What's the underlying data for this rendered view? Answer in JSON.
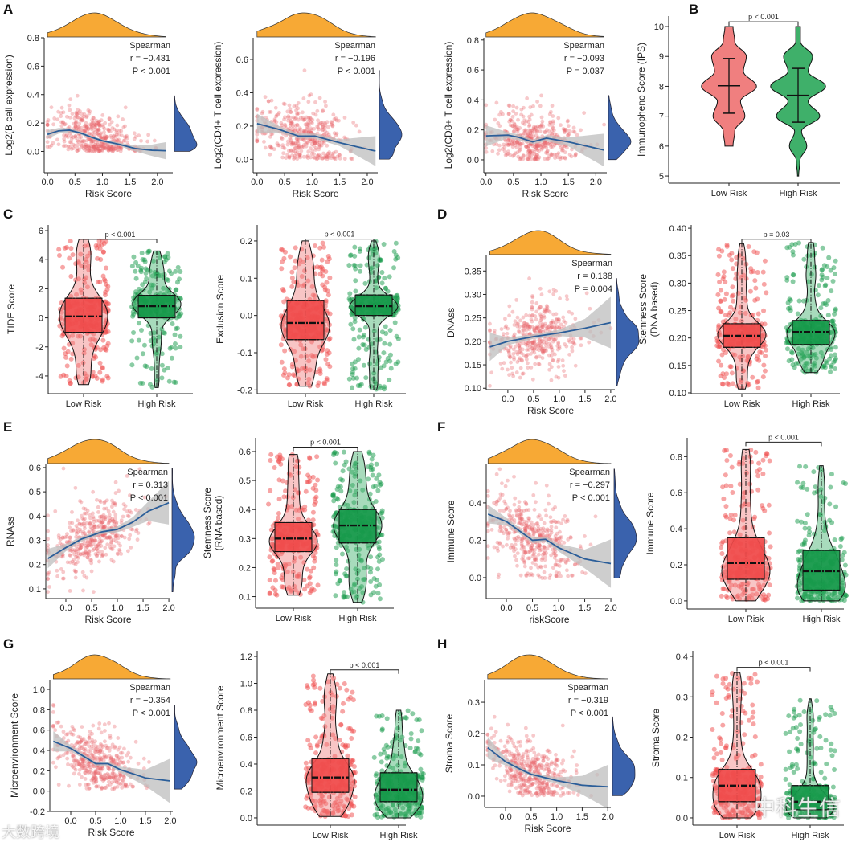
{
  "panel_letters": {
    "A": "A",
    "B": "B",
    "C": "C",
    "D": "D",
    "E": "E",
    "F": "F",
    "G": "G",
    "H": "H"
  },
  "watermarks": {
    "left": "大数跨境",
    "right": "中科生信"
  },
  "colors": {
    "point": "#e8636b",
    "trend": "#2b5e99",
    "ci": "#bdbdbd",
    "top_density": "#f7a935",
    "right_density": "#3a62ad",
    "low": "#f04b4b",
    "high": "#16994a",
    "low_violin": "#f07f7f",
    "high_violin": "#3fb06a"
  },
  "chart_data": [
    {
      "id": "A1",
      "type": "scatter",
      "xlabel": "Risk Score",
      "ylabel": "Log2(B cell expression)",
      "xticks": [
        "0.0",
        "0.5",
        "1.0",
        "1.5",
        "2.0"
      ],
      "yticks": [
        "0.0",
        "0.2",
        "0.4",
        "0.6",
        "0.8"
      ],
      "xlim": [
        -0.06,
        2.28
      ],
      "ylim": [
        -0.15,
        0.8
      ],
      "stat": [
        "Spearman",
        "r = −0.431",
        "P < 0.001"
      ],
      "trend": [
        [
          0,
          0.12
        ],
        [
          0.2,
          0.145
        ],
        [
          0.4,
          0.15
        ],
        [
          0.6,
          0.13
        ],
        [
          0.8,
          0.1
        ],
        [
          1.0,
          0.075
        ],
        [
          1.3,
          0.05
        ],
        [
          1.6,
          0.02
        ],
        [
          1.9,
          0.008
        ],
        [
          2.15,
          0.005
        ]
      ],
      "ci": [
        0.03,
        0.02,
        0.015,
        0.012,
        0.01,
        0.01,
        0.012,
        0.02,
        0.04,
        0.06
      ],
      "n": 420,
      "x_mean": 0.85,
      "x_sd": 0.42,
      "x_range": [
        0,
        2.15
      ],
      "noise_sd": 0.1,
      "y_floor": 0
    },
    {
      "id": "A2",
      "type": "scatter",
      "xlabel": "Risk Score",
      "ylabel": "Log2(CD4+ T cell expression)",
      "xticks": [
        "0.0",
        "0.5",
        "1.0",
        "1.5",
        "2.0"
      ],
      "yticks": [
        "0.0",
        "0.2",
        "0.4",
        "0.6"
      ],
      "xlim": [
        -0.07,
        2.19
      ],
      "ylim": [
        -0.08,
        0.73
      ],
      "stat": [
        "Spearman",
        "r = −0.196",
        "P < 0.001"
      ],
      "trend": [
        [
          0,
          0.215
        ],
        [
          0.4,
          0.18
        ],
        [
          0.75,
          0.14
        ],
        [
          1.05,
          0.14
        ],
        [
          1.5,
          0.1
        ],
        [
          2.15,
          0.05
        ]
      ],
      "ci": [
        0.06,
        0.02,
        0.015,
        0.015,
        0.02,
        0.09
      ],
      "n": 420,
      "x_mean": 0.85,
      "x_sd": 0.42,
      "x_range": [
        0,
        2.15
      ],
      "noise_sd": 0.11,
      "y_floor": 0
    },
    {
      "id": "A3",
      "type": "scatter",
      "xlabel": "Risk Score",
      "ylabel": "Log2(CD8+ T cell expression)",
      "xticks": [
        "0.0",
        "0.5",
        "1.0",
        "1.5",
        "2.0"
      ],
      "yticks": [
        "0.0",
        "0.2",
        "0.4",
        "0.6",
        "0.8"
      ],
      "xlim": [
        -0.04,
        2.2
      ],
      "ylim": [
        -0.086,
        0.815
      ],
      "stat": [
        "Spearman",
        "r = −0.093",
        "P = 0.037"
      ],
      "trend": [
        [
          0,
          0.16
        ],
        [
          0.4,
          0.165
        ],
        [
          0.6,
          0.15
        ],
        [
          0.85,
          0.12
        ],
        [
          1.1,
          0.145
        ],
        [
          1.5,
          0.12
        ],
        [
          2.15,
          0.065
        ]
      ],
      "ci": [
        0.07,
        0.02,
        0.02,
        0.015,
        0.02,
        0.03,
        0.11
      ],
      "n": 420,
      "x_mean": 0.85,
      "x_sd": 0.42,
      "x_range": [
        0,
        2.15
      ],
      "noise_sd": 0.11,
      "y_floor": 0
    },
    {
      "id": "B",
      "type": "violin",
      "ylabel": "Immunopheno Score (IPS)",
      "yticks": [
        "5",
        "6",
        "7",
        "8",
        "9",
        "10"
      ],
      "ylim": [
        4.76,
        10.35
      ],
      "categories": [
        "Low Risk",
        "High Risk"
      ],
      "p": "p < 0.001",
      "bracket_y": 10.16,
      "groups": [
        {
          "min": 6,
          "max": 10,
          "mean": 8.02,
          "lower": 7.1,
          "upper": 8.93,
          "profile": [
            0.14,
            0.2,
            0.55,
            0.4,
            0.95,
            0.5,
            0.6,
            0.2,
            0.14
          ]
        },
        {
          "min": 5,
          "max": 10,
          "mean": 7.7,
          "lower": 6.8,
          "upper": 8.6,
          "profile": [
            0.02,
            0.06,
            0.3,
            0.12,
            0.75,
            0.35,
            0.95,
            0.35,
            0.5,
            0.08,
            0.08
          ]
        }
      ]
    },
    {
      "id": "C1",
      "type": "box",
      "ylabel": [
        "TIDE Score"
      ],
      "yticks": [
        "-4",
        "-2",
        "0",
        "2",
        "4",
        "6"
      ],
      "ylim": [
        -5.22,
        6.39
      ],
      "categories": [
        "Low Risk",
        "High Risk"
      ],
      "p": "p < 0.001",
      "bracket_y": 5.4,
      "groups": [
        {
          "min": -4.6,
          "q1": -1.0,
          "median": 0.1,
          "q3": 1.35,
          "max": 5.4
        },
        {
          "min": -4.8,
          "q1": 0.0,
          "median": 0.8,
          "q3": 1.55,
          "max": 4.6
        }
      ]
    },
    {
      "id": "C2",
      "type": "box",
      "ylabel": [
        "Exclusion Score"
      ],
      "yticks": [
        "-0.2",
        "-0.1",
        "0.0",
        "0.1",
        "0.2"
      ],
      "ylim": [
        -0.21,
        0.243
      ],
      "categories": [
        "Low Risk",
        "High Risk"
      ],
      "p": "p < 0.001",
      "bracket_y": 0.205,
      "groups": [
        {
          "min": -0.19,
          "q1": -0.065,
          "median": -0.02,
          "q3": 0.04,
          "max": 0.2
        },
        {
          "min": -0.2,
          "q1": 0.0,
          "median": 0.025,
          "q3": 0.055,
          "max": 0.2
        }
      ]
    },
    {
      "id": "D1",
      "type": "scatter",
      "xlabel": "Risk Score",
      "ylabel": "DNAss",
      "xticks": [
        "0.0",
        "0.5",
        "1.0",
        "1.5",
        "2.0"
      ],
      "yticks": [
        "0.10",
        "0.15",
        "0.20",
        "0.25",
        "0.30",
        "0.35"
      ],
      "xlim": [
        -0.42,
        2.08
      ],
      "ylim": [
        0.097,
        0.383
      ],
      "stat": [
        "Spearman",
        "r = 0.138",
        "P = 0.004"
      ],
      "trend": [
        [
          -0.35,
          0.188
        ],
        [
          0,
          0.2
        ],
        [
          0.5,
          0.21
        ],
        [
          1.0,
          0.218
        ],
        [
          1.5,
          0.228
        ],
        [
          2.0,
          0.24
        ]
      ],
      "ci": [
        0.03,
        0.008,
        0.005,
        0.007,
        0.02,
        0.055
      ],
      "n": 400,
      "x_mean": 0.55,
      "x_sd": 0.42,
      "x_range": [
        -0.35,
        2.0
      ],
      "noise_sd": 0.045,
      "y_floor": 0.105
    },
    {
      "id": "D2",
      "type": "box",
      "ylabel": [
        "Stemness Score",
        "(DNA based)"
      ],
      "yticks": [
        "0.10",
        "0.15",
        "0.20",
        "0.25",
        "0.30",
        "0.35",
        "0.40"
      ],
      "ylim": [
        0.0985,
        0.406
      ],
      "categories": [
        "Low Risk",
        "High Risk"
      ],
      "p": "p = 0.03",
      "bracket_y": 0.38,
      "groups": [
        {
          "min": 0.107,
          "q1": 0.183,
          "median": 0.204,
          "q3": 0.226,
          "max": 0.372
        },
        {
          "min": 0.137,
          "q1": 0.188,
          "median": 0.211,
          "q3": 0.232,
          "max": 0.374
        }
      ]
    },
    {
      "id": "E1",
      "type": "scatter",
      "xlabel": "Risk Score",
      "ylabel": "RNAss",
      "xticks": [
        "0.0",
        "0.5",
        "1.0",
        "1.5",
        "2.0"
      ],
      "yticks": [
        "0.1",
        "0.2",
        "0.3",
        "0.4",
        "0.5",
        "0.6"
      ],
      "xlim": [
        -0.39,
        2.03
      ],
      "ylim": [
        0.06,
        0.613
      ],
      "stat": [
        "Spearman",
        "r = 0.313",
        "P < 0.001"
      ],
      "trend": [
        [
          -0.35,
          0.225
        ],
        [
          0,
          0.27
        ],
        [
          0.3,
          0.305
        ],
        [
          0.7,
          0.335
        ],
        [
          1.0,
          0.345
        ],
        [
          1.3,
          0.375
        ],
        [
          1.6,
          0.42
        ],
        [
          2.0,
          0.455
        ]
      ],
      "ci": [
        0.04,
        0.015,
        0.01,
        0.01,
        0.012,
        0.02,
        0.04,
        0.09
      ],
      "n": 420,
      "x_mean": 0.5,
      "x_sd": 0.42,
      "x_range": [
        -0.35,
        2.0
      ],
      "noise_sd": 0.08,
      "y_floor": 0.08
    },
    {
      "id": "E2",
      "type": "box",
      "ylabel": [
        "Stemness Score",
        "(RNA based)"
      ],
      "yticks": [
        "0.1",
        "0.2",
        "0.3",
        "0.4",
        "0.5",
        "0.6"
      ],
      "ylim": [
        0.06,
        0.647
      ],
      "categories": [
        "Low Risk",
        "High Risk"
      ],
      "p": "p < 0.001",
      "bracket_y": 0.615,
      "groups": [
        {
          "min": 0.105,
          "q1": 0.255,
          "median": 0.3,
          "q3": 0.355,
          "max": 0.59
        },
        {
          "min": 0.08,
          "q1": 0.285,
          "median": 0.345,
          "q3": 0.4,
          "max": 0.6
        }
      ]
    },
    {
      "id": "F1",
      "type": "scatter",
      "xlabel": "riskScore",
      "ylabel": "Immune Score",
      "xticks": [
        "0.0",
        "0.5",
        "1.0",
        "1.5",
        "2.0"
      ],
      "yticks": [
        "0.0",
        "0.2",
        "0.4"
      ],
      "xlim": [
        -0.385,
        2.03
      ],
      "ylim": [
        -0.112,
        0.606
      ],
      "stat": [
        "Spearman",
        "r = −0.297",
        "P < 0.001"
      ],
      "trend": [
        [
          -0.35,
          0.34
        ],
        [
          0,
          0.3
        ],
        [
          0.3,
          0.24
        ],
        [
          0.5,
          0.2
        ],
        [
          0.75,
          0.205
        ],
        [
          1.0,
          0.16
        ],
        [
          1.5,
          0.1
        ],
        [
          2.0,
          0.075
        ]
      ],
      "ci": [
        0.05,
        0.02,
        0.015,
        0.015,
        0.015,
        0.02,
        0.05,
        0.13
      ],
      "n": 420,
      "x_mean": 0.5,
      "x_sd": 0.42,
      "x_range": [
        -0.35,
        2.0
      ],
      "noise_sd": 0.12,
      "y_floor": -0.01
    },
    {
      "id": "F2",
      "type": "box",
      "ylabel": [
        "Immune Score"
      ],
      "yticks": [
        "0.0",
        "0.2",
        "0.4",
        "0.6",
        "0.8"
      ],
      "ylim": [
        -0.045,
        0.904
      ],
      "categories": [
        "Low Risk",
        "High Risk"
      ],
      "p": "p < 0.001",
      "bracket_y": 0.88,
      "groups": [
        {
          "min": 0.0,
          "q1": 0.12,
          "median": 0.21,
          "q3": 0.35,
          "max": 0.84
        },
        {
          "min": 0.0,
          "q1": 0.06,
          "median": 0.165,
          "q3": 0.28,
          "max": 0.75
        }
      ]
    },
    {
      "id": "G1",
      "type": "scatter",
      "xlabel": "Risk Score",
      "ylabel": "Microenvironment Score",
      "xticks": [
        "0.0",
        "0.5",
        "1.0",
        "1.5",
        "2.0"
      ],
      "yticks": [
        "-0.2",
        "0.0",
        "0.2",
        "0.4",
        "0.6",
        "0.8",
        "1.0"
      ],
      "xlim": [
        -0.42,
        2.05
      ],
      "ylim": [
        -0.2,
        1.095
      ],
      "stat": [
        "Spearman",
        "r = −0.354",
        "P < 0.001"
      ],
      "trend": [
        [
          -0.35,
          0.49
        ],
        [
          0,
          0.42
        ],
        [
          0.4,
          0.3
        ],
        [
          0.5,
          0.27
        ],
        [
          0.75,
          0.27
        ],
        [
          1.0,
          0.21
        ],
        [
          1.5,
          0.13
        ],
        [
          2.0,
          0.1
        ]
      ],
      "ci": [
        0.1,
        0.03,
        0.02,
        0.02,
        0.02,
        0.03,
        0.08,
        0.22
      ],
      "n": 420,
      "x_mean": 0.5,
      "x_sd": 0.42,
      "x_range": [
        -0.35,
        2.0
      ],
      "noise_sd": 0.17,
      "y_floor": 0.02
    },
    {
      "id": "G2",
      "type": "box",
      "ylabel": [
        "Microenvironment Score"
      ],
      "yticks": [
        "0.0",
        "0.2",
        "0.4",
        "0.6",
        "0.8",
        "1.0",
        "1.2"
      ],
      "ylim": [
        -0.054,
        1.242
      ],
      "categories": [
        "Low Risk",
        "High Risk"
      ],
      "p": "p < 0.001",
      "bracket_y": 1.1,
      "groups": [
        {
          "min": 0.01,
          "q1": 0.19,
          "median": 0.3,
          "q3": 0.44,
          "max": 1.07
        },
        {
          "min": 0.0,
          "q1": 0.12,
          "median": 0.21,
          "q3": 0.335,
          "max": 0.8
        }
      ]
    },
    {
      "id": "H1",
      "type": "scatter",
      "xlabel": "Risk Score",
      "ylabel": "Stroma Score",
      "xticks": [
        "0.0",
        "0.5",
        "1.0",
        "1.5",
        "2.0"
      ],
      "yticks": [
        "0.0",
        "0.1",
        "0.2",
        "0.3"
      ],
      "xlim": [
        -0.41,
        2.06
      ],
      "ylim": [
        -0.036,
        0.372
      ],
      "stat": [
        "Spearman",
        "r = −0.319",
        "P < 0.001"
      ],
      "trend": [
        [
          -0.35,
          0.155
        ],
        [
          0,
          0.11
        ],
        [
          0.3,
          0.085
        ],
        [
          0.5,
          0.07
        ],
        [
          1.0,
          0.05
        ],
        [
          1.5,
          0.035
        ],
        [
          2.0,
          0.03
        ]
      ],
      "ci": [
        0.035,
        0.012,
        0.008,
        0.006,
        0.01,
        0.03,
        0.07
      ],
      "n": 420,
      "x_mean": 0.5,
      "x_sd": 0.42,
      "x_range": [
        -0.35,
        2.0
      ],
      "noise_sd": 0.055,
      "y_floor": 0.0
    },
    {
      "id": "H2",
      "type": "box",
      "ylabel": [
        "Stroma Score"
      ],
      "yticks": [
        "0.0",
        "0.1",
        "0.2",
        "0.3",
        "0.4"
      ],
      "ylim": [
        -0.018,
        0.414
      ],
      "categories": [
        "Low Risk",
        "High Risk"
      ],
      "p": "p < 0.001",
      "bracket_y": 0.373,
      "groups": [
        {
          "min": 0.0,
          "q1": 0.04,
          "median": 0.08,
          "q3": 0.12,
          "max": 0.36
        },
        {
          "min": 0.0,
          "q1": 0.02,
          "median": 0.04,
          "q3": 0.08,
          "max": 0.295
        }
      ]
    }
  ]
}
